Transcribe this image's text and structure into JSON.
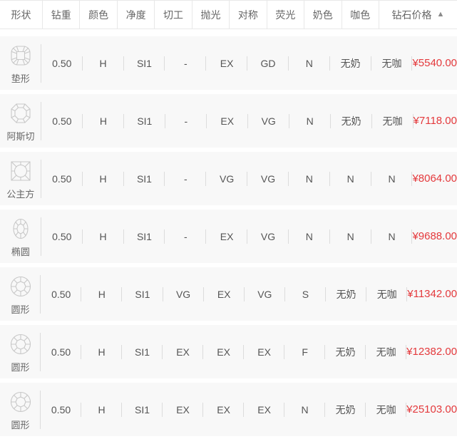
{
  "colors": {
    "price_red": "#e4393c",
    "row_background": "#f8f8f8",
    "divider": "#dcdcdc",
    "header_border": "#e8e8e8",
    "header_text": "#666666",
    "body_text": "#555555",
    "icon_stroke": "#c8c8c8"
  },
  "table": {
    "sort_glyph": "▲",
    "sort_state": "ascending",
    "columns": [
      {
        "key": "shape",
        "label": "形状"
      },
      {
        "key": "carat",
        "label": "钻重"
      },
      {
        "key": "color",
        "label": "颜色"
      },
      {
        "key": "clarity",
        "label": "净度"
      },
      {
        "key": "cut",
        "label": "切工"
      },
      {
        "key": "polish",
        "label": "抛光"
      },
      {
        "key": "symmetry",
        "label": "对称"
      },
      {
        "key": "fluorescence",
        "label": "荧光"
      },
      {
        "key": "milky",
        "label": "奶色"
      },
      {
        "key": "coffee",
        "label": "咖色"
      },
      {
        "key": "price",
        "label": "钻石价格"
      }
    ],
    "rows": [
      {
        "shape_icon": "cushion",
        "shape": "垫形",
        "carat": "0.50",
        "color": "H",
        "clarity": "SI1",
        "cut": "-",
        "polish": "EX",
        "symmetry": "GD",
        "fluorescence": "N",
        "milky": "无奶",
        "coffee": "无咖",
        "price": "¥5540.00"
      },
      {
        "shape_icon": "asscher",
        "shape": "阿斯切",
        "carat": "0.50",
        "color": "H",
        "clarity": "SI1",
        "cut": "-",
        "polish": "EX",
        "symmetry": "VG",
        "fluorescence": "N",
        "milky": "无奶",
        "coffee": "无咖",
        "price": "¥7118.00"
      },
      {
        "shape_icon": "princess",
        "shape": "公主方",
        "carat": "0.50",
        "color": "H",
        "clarity": "SI1",
        "cut": "-",
        "polish": "VG",
        "symmetry": "VG",
        "fluorescence": "N",
        "milky": "N",
        "coffee": "N",
        "price": "¥8064.00"
      },
      {
        "shape_icon": "oval",
        "shape": "椭圆",
        "carat": "0.50",
        "color": "H",
        "clarity": "SI1",
        "cut": "-",
        "polish": "EX",
        "symmetry": "VG",
        "fluorescence": "N",
        "milky": "N",
        "coffee": "N",
        "price": "¥9688.00"
      },
      {
        "shape_icon": "round",
        "shape": "圆形",
        "carat": "0.50",
        "color": "H",
        "clarity": "SI1",
        "cut": "VG",
        "polish": "EX",
        "symmetry": "VG",
        "fluorescence": "S",
        "milky": "无奶",
        "coffee": "无咖",
        "price": "¥11342.00"
      },
      {
        "shape_icon": "round",
        "shape": "圆形",
        "carat": "0.50",
        "color": "H",
        "clarity": "SI1",
        "cut": "EX",
        "polish": "EX",
        "symmetry": "EX",
        "fluorescence": "F",
        "milky": "无奶",
        "coffee": "无咖",
        "price": "¥12382.00"
      },
      {
        "shape_icon": "round",
        "shape": "圆形",
        "carat": "0.50",
        "color": "H",
        "clarity": "SI1",
        "cut": "EX",
        "polish": "EX",
        "symmetry": "EX",
        "fluorescence": "N",
        "milky": "无奶",
        "coffee": "无咖",
        "price": "¥25103.00"
      }
    ]
  }
}
